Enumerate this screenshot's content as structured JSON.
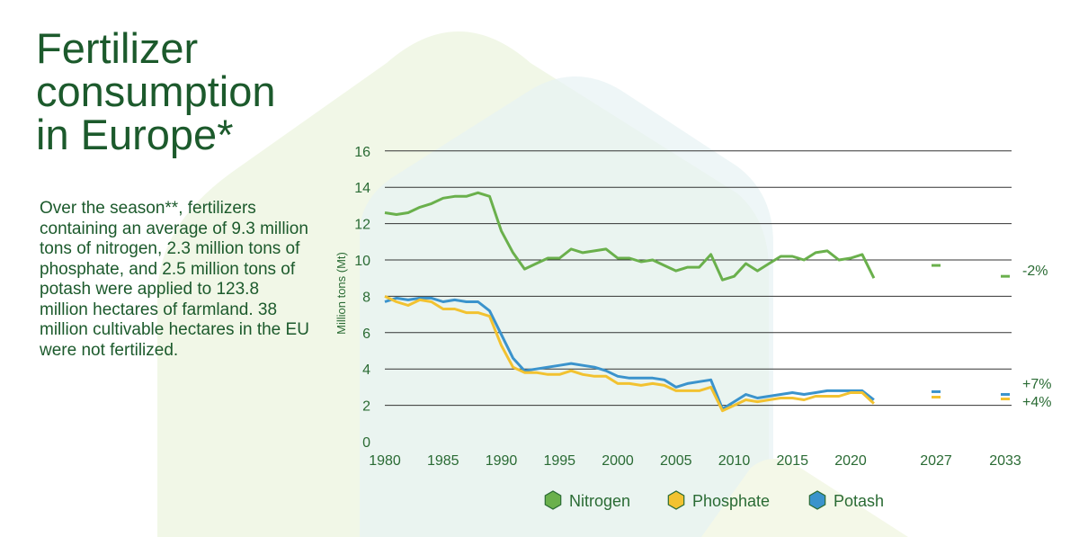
{
  "title_lines": [
    "Fertilizer",
    "consumption",
    "in Europe*"
  ],
  "intro": "Over the season**, fertilizers containing an average of 9.3 million tons of nitrogen, 2.3 million tons of phosphate, and 2.5 million tons of potash were applied to 123.8 million hectares of farmland. 38 million cultivable hectares in the EU were not fertilized.",
  "colors": {
    "Nitrogen": "#6ab04c",
    "Phosphate": "#f2c230",
    "Potash": "#3b93cc",
    "text": "#1c5a2c",
    "grid": "#333333"
  },
  "chart_data": {
    "type": "line",
    "ylabel": "Million tons (Mt)",
    "ylim": [
      0,
      16
    ],
    "yticks": [
      0,
      2,
      4,
      6,
      8,
      10,
      12,
      14,
      16
    ],
    "xticks": [
      "1980",
      "1985",
      "1990",
      "1995",
      "2000",
      "2005",
      "2010",
      "2015",
      "2020",
      "2027",
      "2033"
    ],
    "grid": true,
    "legend_position": "bottom",
    "years": [
      1980,
      1981,
      1982,
      1983,
      1984,
      1985,
      1986,
      1987,
      1988,
      1989,
      1990,
      1991,
      1992,
      1993,
      1994,
      1995,
      1996,
      1997,
      1998,
      1999,
      2000,
      2001,
      2002,
      2003,
      2004,
      2005,
      2006,
      2007,
      2008,
      2009,
      2010,
      2011,
      2012,
      2013,
      2014,
      2015,
      2016,
      2017,
      2018,
      2019,
      2020,
      2021,
      2022
    ],
    "series": [
      {
        "name": "Nitrogen",
        "values": [
          12.6,
          12.5,
          12.6,
          12.9,
          13.1,
          13.4,
          13.5,
          13.5,
          13.7,
          13.5,
          11.6,
          10.4,
          9.5,
          9.8,
          10.1,
          10.1,
          10.6,
          10.4,
          10.5,
          10.6,
          10.1,
          10.1,
          9.9,
          10.0,
          9.7,
          9.4,
          9.6,
          9.6,
          10.3,
          8.9,
          9.1,
          9.8,
          9.4,
          9.8,
          10.2,
          10.2,
          10.0,
          10.4,
          10.5,
          10.0,
          10.1,
          10.3,
          9.0
        ],
        "projections": [
          {
            "year": "2027",
            "value": 9.7
          },
          {
            "year": "2033",
            "value": 9.1
          }
        ],
        "change": "-2%"
      },
      {
        "name": "Phosphate",
        "values": [
          8.0,
          7.7,
          7.5,
          7.8,
          7.7,
          7.3,
          7.3,
          7.1,
          7.1,
          6.9,
          5.3,
          4.1,
          3.8,
          3.8,
          3.7,
          3.7,
          3.9,
          3.7,
          3.6,
          3.6,
          3.2,
          3.2,
          3.1,
          3.2,
          3.1,
          2.8,
          2.8,
          2.8,
          3.0,
          1.7,
          2.0,
          2.3,
          2.2,
          2.3,
          2.4,
          2.4,
          2.3,
          2.5,
          2.5,
          2.5,
          2.7,
          2.7,
          2.1
        ],
        "projections": [
          {
            "year": "2027",
            "value": 2.45
          },
          {
            "year": "2033",
            "value": 2.35
          }
        ],
        "change": "+4%"
      },
      {
        "name": "Potash",
        "values": [
          7.7,
          7.9,
          7.8,
          7.9,
          7.9,
          7.7,
          7.8,
          7.7,
          7.7,
          7.2,
          5.9,
          4.6,
          3.9,
          4.0,
          4.1,
          4.2,
          4.3,
          4.2,
          4.1,
          3.9,
          3.6,
          3.5,
          3.5,
          3.5,
          3.4,
          3.0,
          3.2,
          3.3,
          3.4,
          1.8,
          2.2,
          2.6,
          2.4,
          2.5,
          2.6,
          2.7,
          2.6,
          2.7,
          2.8,
          2.8,
          2.8,
          2.8,
          2.3
        ],
        "projections": [
          {
            "year": "2027",
            "value": 2.75
          },
          {
            "year": "2033",
            "value": 2.6
          }
        ],
        "change": "+7%"
      }
    ]
  }
}
